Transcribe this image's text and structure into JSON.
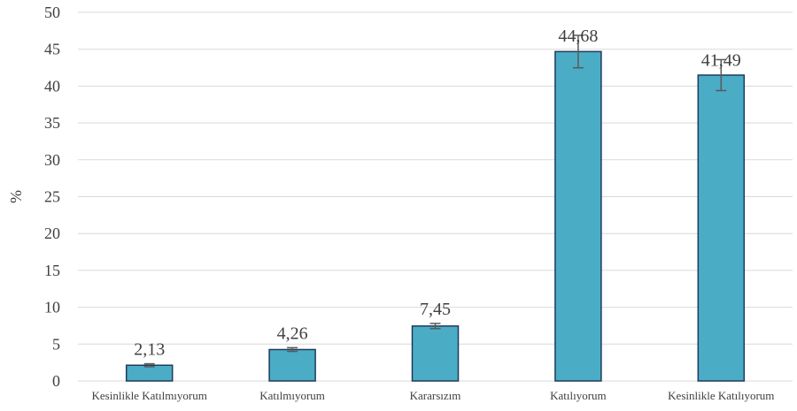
{
  "chart_data": {
    "type": "bar",
    "title": "",
    "xlabel": "",
    "ylabel": "%",
    "ylim": [
      0,
      50
    ],
    "yticks": [
      0,
      5,
      10,
      15,
      20,
      25,
      30,
      35,
      40,
      45,
      50
    ],
    "grid": true,
    "legend": "none",
    "categories": [
      "Kesinlikle Katılmıyorum",
      "Katılmıyorum",
      "Kararsızım",
      "Katılıyorum",
      "Kesinlikle Katılıyorum"
    ],
    "values": [
      2.13,
      4.26,
      7.45,
      44.68,
      41.49
    ],
    "value_labels": [
      "2,13",
      "4,26",
      "7,45",
      "44,68",
      "41,49"
    ],
    "error": [
      0.2,
      0.25,
      0.35,
      2.2,
      2.1
    ],
    "colors": {
      "bar_fill": "#4BACC6",
      "bar_stroke": "#1F3B5A",
      "grid": "#D9D9D9",
      "error_bar": "#595959"
    }
  }
}
